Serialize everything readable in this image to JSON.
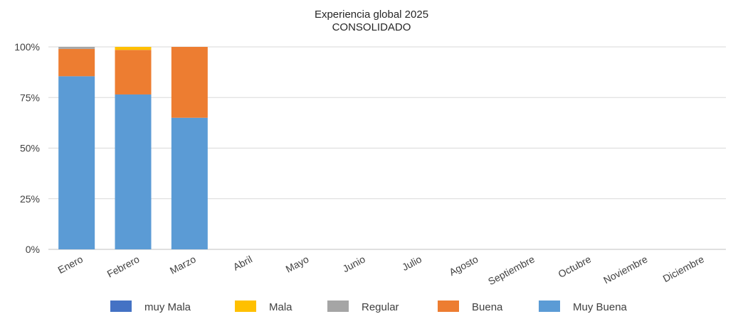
{
  "chart_data": {
    "type": "bar",
    "stacked": true,
    "title": "Experiencia global 2025",
    "subtitle": "CONSOLIDADO",
    "xlabel": "",
    "ylabel": "",
    "ylim": [
      0,
      1
    ],
    "y_ticks": [
      "0%",
      "25%",
      "50%",
      "75%",
      "100%"
    ],
    "y_tick_values": [
      0,
      0.25,
      0.5,
      0.75,
      1.0
    ],
    "grid": true,
    "legend_position": "bottom",
    "categories": [
      "Enero",
      "Febrero",
      "Marzo",
      "Abril",
      "Mayo",
      "Junio",
      "Julio",
      "Agosto",
      "Septiembre",
      "Octubre",
      "Noviembre",
      "Diciembre"
    ],
    "series": [
      {
        "name": "Muy Buena",
        "color": "#5b9bd5",
        "values": [
          0.855,
          0.765,
          0.65,
          0,
          0,
          0,
          0,
          0,
          0,
          0,
          0,
          0
        ]
      },
      {
        "name": "Buena",
        "color": "#ed7d31",
        "values": [
          0.135,
          0.22,
          0.35,
          0,
          0,
          0,
          0,
          0,
          0,
          0,
          0,
          0
        ]
      },
      {
        "name": "Regular",
        "color": "#a5a5a5",
        "values": [
          0.01,
          0,
          0,
          0,
          0,
          0,
          0,
          0,
          0,
          0,
          0,
          0
        ]
      },
      {
        "name": "Mala",
        "color": "#ffc000",
        "values": [
          0,
          0.015,
          0,
          0,
          0,
          0,
          0,
          0,
          0,
          0,
          0,
          0
        ]
      },
      {
        "name": "muy Mala",
        "color": "#4472c4",
        "values": [
          0,
          0,
          0,
          0,
          0,
          0,
          0,
          0,
          0,
          0,
          0,
          0
        ]
      }
    ],
    "legend_order": [
      "muy Mala",
      "Mala",
      "Regular",
      "Buena",
      "Muy Buena"
    ]
  }
}
